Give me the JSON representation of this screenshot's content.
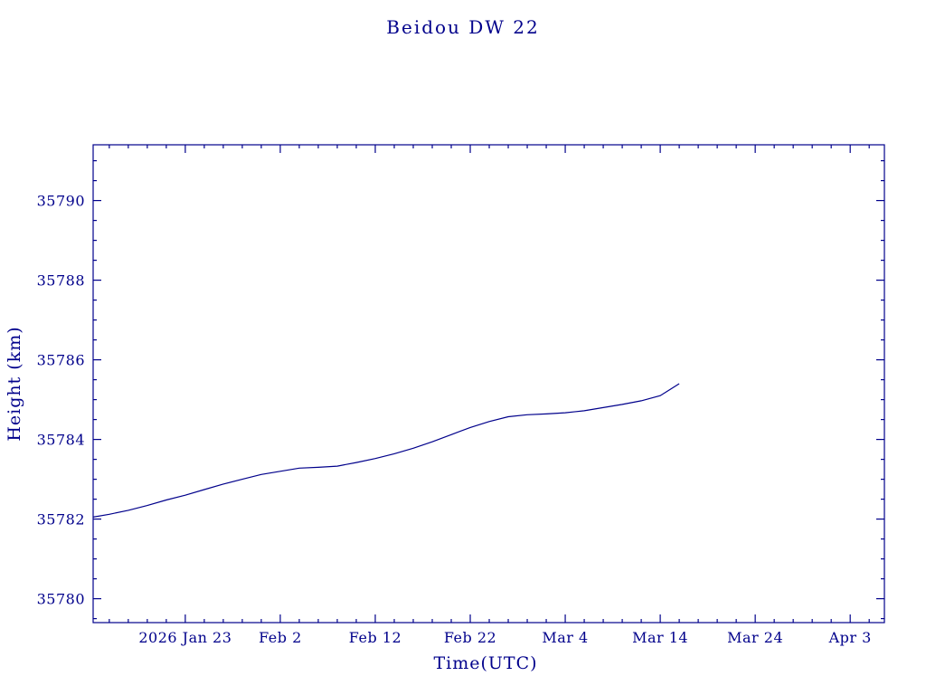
{
  "page": {
    "background_color": "#ffffff",
    "accent_color": "#00008b"
  },
  "chart_data": {
    "type": "line",
    "title": "Beidou DW 22",
    "xlabel": "Time(UTC)",
    "ylabel": "Height (km)",
    "frame_color": "#00008b",
    "line_color": "#00008b",
    "grid": false,
    "legend": false,
    "x_ticks": [
      {
        "day": 0,
        "label": "2026 Jan 23"
      },
      {
        "day": 10,
        "label": "Feb 2"
      },
      {
        "day": 20,
        "label": "Feb 12"
      },
      {
        "day": 30,
        "label": "Feb 22"
      },
      {
        "day": 40,
        "label": "Mar 4"
      },
      {
        "day": 50,
        "label": "Mar 14"
      },
      {
        "day": 60,
        "label": "Mar 24"
      },
      {
        "day": 70,
        "label": "Apr 3"
      }
    ],
    "y_ticks": [
      35780,
      35782,
      35784,
      35786,
      35788,
      35790
    ],
    "xlim": [
      -9.7,
      73.6
    ],
    "ylim": [
      35779.4,
      35791.4
    ],
    "x_minor_step_days": 2,
    "y_minor_step": 0.5,
    "series": [
      {
        "name": "Beidou DW 22 height",
        "x": [
          -9.7,
          -8,
          -6,
          -4,
          -2,
          0,
          2,
          4,
          6,
          8,
          10,
          12,
          14,
          16,
          18,
          20,
          22,
          24,
          26,
          28,
          30,
          32,
          34,
          36,
          38,
          40,
          42,
          44,
          46,
          48,
          50,
          51,
          52
        ],
        "y": [
          35782.05,
          35782.12,
          35782.22,
          35782.34,
          35782.48,
          35782.6,
          35782.74,
          35782.88,
          35783.0,
          35783.12,
          35783.2,
          35783.28,
          35783.3,
          35783.33,
          35783.42,
          35783.52,
          35783.64,
          35783.78,
          35783.94,
          35784.12,
          35784.3,
          35784.45,
          35784.57,
          35784.62,
          35784.64,
          35784.67,
          35784.72,
          35784.8,
          35784.88,
          35784.97,
          35785.1,
          35785.25,
          35785.4
        ]
      }
    ]
  }
}
